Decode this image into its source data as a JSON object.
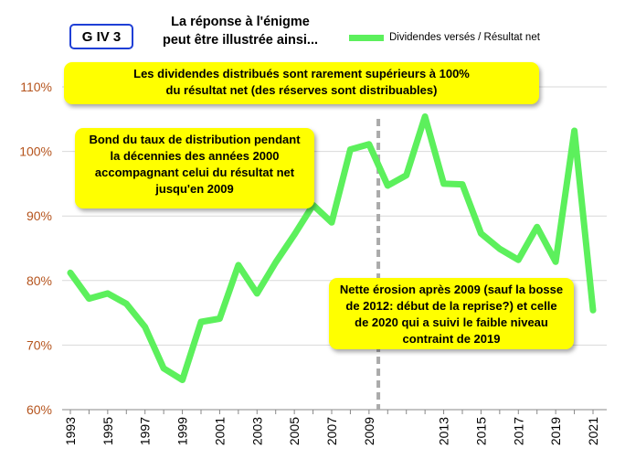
{
  "badge": "G IV 3",
  "title_lines": [
    "La réponse à l'énigme",
    "peut être illustrée ainsi..."
  ],
  "annotations": {
    "reserves": [
      "Les dividendes distribués sont rarement supérieurs à 100%",
      "du résultat net (des réserves sont distribuables)"
    ],
    "bond": [
      "Bond du taux de distribution pendant",
      "la décennies des années 2000",
      "accompagnant celui du résultat net",
      "jusqu'en 2009"
    ],
    "erosion": [
      "Nette érosion après 2009 (sauf la bosse",
      "de 2012: début de la reprise?) et celle",
      "de 2020 qui a suivi le faible niveau",
      "contraint de 2019"
    ]
  },
  "colors": {
    "line": "#5cf05c",
    "axis_labels": "#b5541d",
    "badge_border": "#1f3fd6",
    "annotation_bg": "#ffff00",
    "marker_line": "#aaaaaa"
  },
  "chart_data": {
    "type": "line",
    "title": "",
    "xlabel": "",
    "ylabel": "",
    "ylim": [
      60,
      110
    ],
    "yticks": [
      "60%",
      "70%",
      "80%",
      "90%",
      "100%",
      "110%"
    ],
    "ytick_values": [
      60,
      70,
      80,
      90,
      100,
      110
    ],
    "xlim": [
      1993,
      2021
    ],
    "xticks": [
      "1993",
      "1995",
      "1997",
      "1999",
      "2001",
      "2003",
      "2005",
      "2007",
      "2009",
      "2013",
      "2015",
      "2017",
      "2019",
      "2021"
    ],
    "grid": "horizontal",
    "legend": "top-right",
    "vertical_marker_x": 2009.5,
    "series": [
      {
        "name": "Dividendes versés / Résultat net",
        "x": [
          1993,
          1994,
          1995,
          1996,
          1997,
          1998,
          1999,
          2000,
          2001,
          2002,
          2003,
          2004,
          2005,
          2006,
          2007,
          2008,
          2009,
          2010,
          2011,
          2012,
          2013,
          2014,
          2015,
          2016,
          2017,
          2018,
          2019,
          2020,
          2021
        ],
        "y": [
          81.2,
          77.2,
          78.0,
          76.4,
          72.8,
          66.4,
          64.6,
          73.6,
          74.1,
          82.4,
          78.0,
          82.8,
          87.1,
          91.7,
          89.0,
          100.3,
          101.1,
          94.7,
          96.3,
          105.4,
          95.0,
          94.9,
          87.3,
          84.9,
          83.2,
          88.3,
          82.9,
          103.2,
          75.4
        ]
      }
    ]
  }
}
